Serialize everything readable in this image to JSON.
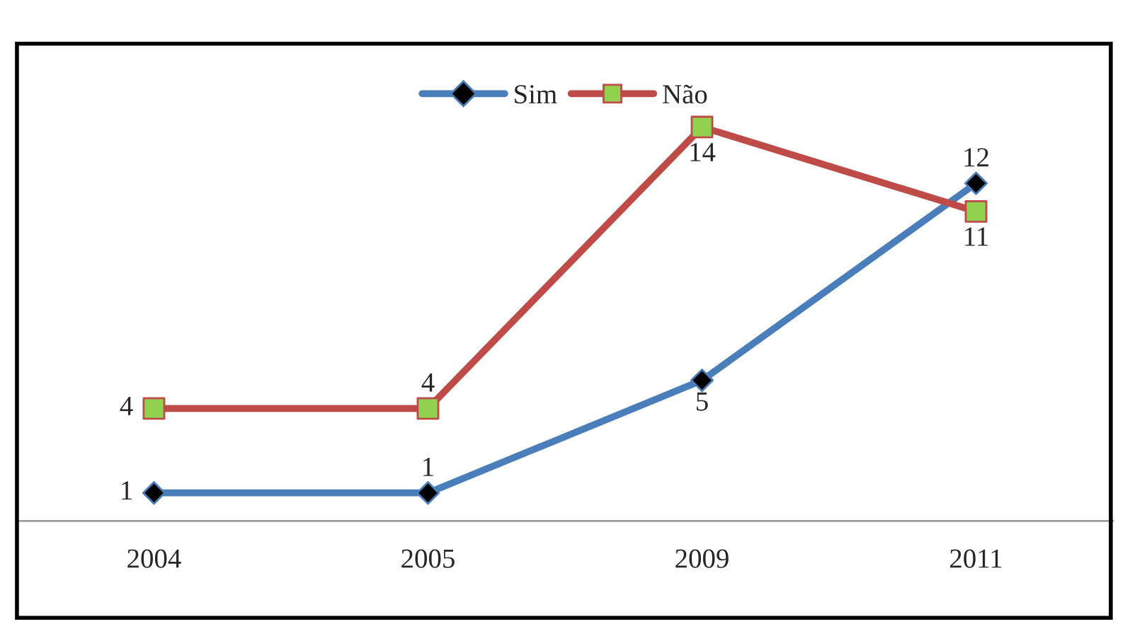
{
  "chart_data": {
    "type": "line",
    "categories": [
      "2004",
      "2005",
      "2009",
      "2011"
    ],
    "series": [
      {
        "name": "Sim",
        "color": "#4a7ebb",
        "marker": "diamond",
        "values": [
          1,
          1,
          5,
          12
        ]
      },
      {
        "name": "Não",
        "color": "#be4b48",
        "marker": "square",
        "values": [
          4,
          4,
          14,
          11
        ]
      }
    ],
    "data_labels": true,
    "legend": "top",
    "grid": false,
    "line_style": "solid"
  }
}
